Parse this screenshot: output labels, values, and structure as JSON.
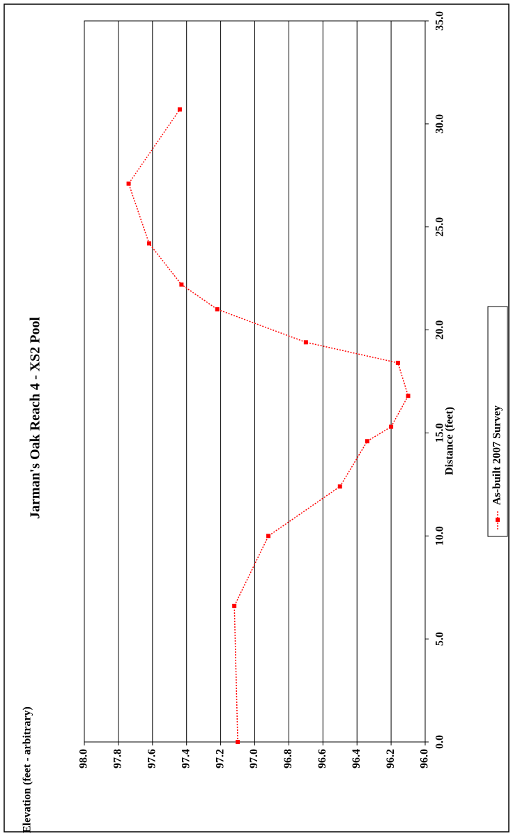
{
  "chart_data": {
    "type": "line",
    "title": "Jarman's Oak Reach 4 - XS2 Pool",
    "xlabel": "Distance (feet)",
    "ylabel": "Elevation (feet - arbitrary)",
    "xlim": [
      0,
      35
    ],
    "ylim": [
      96,
      98
    ],
    "x_ticks": [
      "0.0",
      "5.0",
      "10.0",
      "15.0",
      "20.0",
      "25.0",
      "30.0",
      "35.0"
    ],
    "y_ticks": [
      "96.0",
      "96.2",
      "96.4",
      "96.6",
      "96.8",
      "97.0",
      "97.2",
      "97.4",
      "97.6",
      "97.8",
      "98.0"
    ],
    "grid": "horizontal",
    "orientation": "rotated 90 degrees counter-clockwise",
    "legend_position": "bottom",
    "series": [
      {
        "name": "As-built 2007 Survey",
        "color": "#ff0000",
        "line_style": "dotted",
        "marker": "square",
        "x": [
          0.0,
          6.6,
          10.0,
          12.4,
          14.6,
          15.3,
          16.8,
          18.4,
          19.4,
          21.0,
          22.2,
          24.2,
          27.1,
          30.7
        ],
        "y": [
          97.1,
          97.12,
          96.92,
          96.5,
          96.34,
          96.2,
          96.1,
          96.16,
          96.7,
          97.22,
          97.43,
          97.62,
          97.74,
          97.44
        ]
      }
    ]
  }
}
